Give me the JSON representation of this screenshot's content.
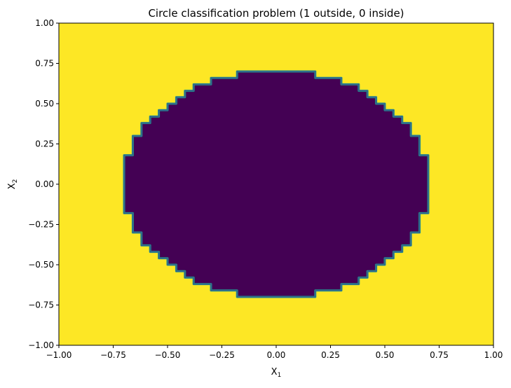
{
  "chart_data": {
    "type": "heatmap",
    "title": "Circle classification problem (1 outside, 0 inside)",
    "xlabel": "X",
    "xlabel_sub": "1",
    "ylabel": "X",
    "ylabel_sub": "2",
    "xlim": [
      -1,
      1
    ],
    "ylim": [
      -1,
      1
    ],
    "xticks": [
      "-1.00",
      "-0.75",
      "-0.50",
      "-0.25",
      "0.00",
      "0.25",
      "0.50",
      "0.75",
      "1.00"
    ],
    "yticks": [
      "-1.00",
      "-0.75",
      "-0.50",
      "-0.25",
      "0.00",
      "0.25",
      "0.50",
      "0.75",
      "1.00"
    ],
    "classes": [
      {
        "value": 0,
        "region": "inside",
        "color": "#440154"
      },
      {
        "value": 1,
        "region": "outside",
        "color": "#fde725"
      }
    ],
    "boundary_radius": 0.707,
    "boundary_color": "#21918c",
    "grid_step": 0.04,
    "grid": false
  }
}
